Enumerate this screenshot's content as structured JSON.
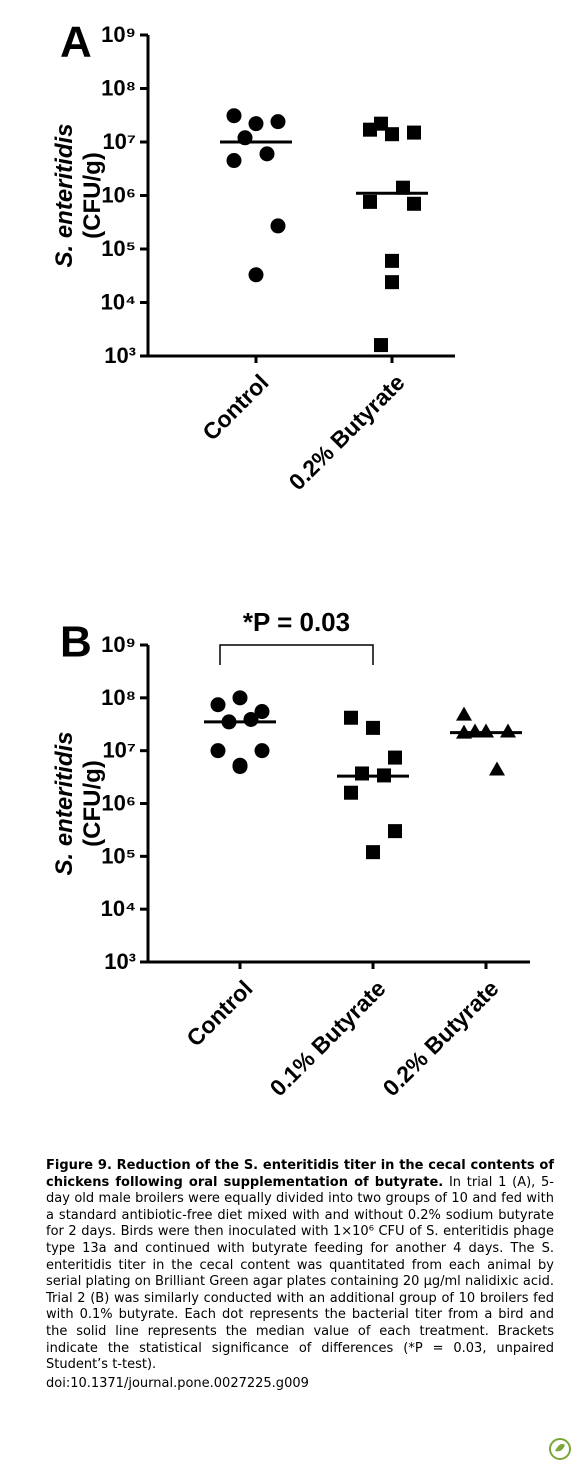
{
  "chart_data": [
    {
      "type": "scatter",
      "label": "A",
      "ylabel_italic": "S. enteritidis",
      "ylabel": "(CFU/g)",
      "log_y": true,
      "categories": [
        "Control",
        "0.2% Butyrate"
      ],
      "markers": [
        "circle",
        "square"
      ],
      "color": "#000000",
      "values": [
        [
          31000000,
          22000000,
          24000000,
          12000000,
          6000000,
          4500000,
          270000,
          33000
        ],
        [
          17000000,
          14000000,
          15000000,
          22000000,
          1400000,
          760000,
          700000,
          60000,
          24000,
          1600
        ]
      ],
      "medians": [
        10000000,
        1100000
      ],
      "ylim": [
        1000,
        1000000000
      ],
      "yticks": [
        {
          "value": 1000,
          "label": "10³"
        },
        {
          "value": 10000,
          "label": "10⁴"
        },
        {
          "value": 100000,
          "label": "10⁵"
        },
        {
          "value": 1000000,
          "label": "10⁶"
        },
        {
          "value": 10000000,
          "label": "10⁷"
        },
        {
          "value": 100000000,
          "label": "10⁸"
        },
        {
          "value": 1000000000,
          "label": "10⁹"
        }
      ]
    },
    {
      "type": "scatter",
      "label": "B",
      "ylabel_italic": "S. enteritidis",
      "ylabel": "(CFU/g)",
      "log_y": true,
      "categories": [
        "Control",
        "0.1% Butyrate",
        "0.2% Butyrate"
      ],
      "markers": [
        "circle",
        "square",
        "triangle"
      ],
      "color": "#000000",
      "values": [
        [
          74000000,
          100000000,
          55000000,
          35000000,
          39000000,
          10000000,
          10000000,
          5000000,
          5300000
        ],
        [
          42000000,
          27000000,
          7400000,
          3700000,
          3400000,
          1600000,
          300000,
          120000
        ],
        [
          48000000,
          23000000,
          23000000,
          23000000,
          4400000,
          22000000
        ]
      ],
      "medians": [
        35000000,
        3300000,
        22000000
      ],
      "annotation": "*P = 0.03",
      "bracket": [
        0,
        1
      ],
      "ylim": [
        1000,
        1000000000
      ],
      "yticks": [
        {
          "value": 1000,
          "label": "10³"
        },
        {
          "value": 10000,
          "label": "10⁴"
        },
        {
          "value": 100000,
          "label": "10⁵"
        },
        {
          "value": 1000000,
          "label": "10⁶"
        },
        {
          "value": 10000000,
          "label": "10⁷"
        },
        {
          "value": 100000000,
          "label": "10⁸"
        },
        {
          "value": 1000000000,
          "label": "10⁹"
        }
      ]
    }
  ],
  "caption": {
    "title": "Figure 9. Reduction of the S. enteritidis titer in the cecal contents of chickens following oral supplementation of butyrate.",
    "body": "In trial 1 (A), 5-day old male broilers were equally divided into two groups of 10 and fed with a standard antibiotic-free diet mixed with and without 0.2% sodium butyrate for 2 days. Birds were then inoculated with 1×10⁶ CFU of S. enteritidis phage type 13a and continued with butyrate feeding for another 4 days. The S. enteritidis titer in the cecal content was quantitated from each animal by serial plating on Brilliant Green agar plates containing 20 µg/ml nalidixic acid. Trial 2 (B) was similarly conducted with an additional group of 10 broilers fed with 0.1% butyrate. Each dot represents the bacterial titer from a bird and the solid line represents the median value of each treatment. Brackets indicate the statistical significance of differences (*P = 0.03, unpaired Student’s t-test).",
    "doi": "doi:10.1371/journal.pone.0027225.g009"
  }
}
